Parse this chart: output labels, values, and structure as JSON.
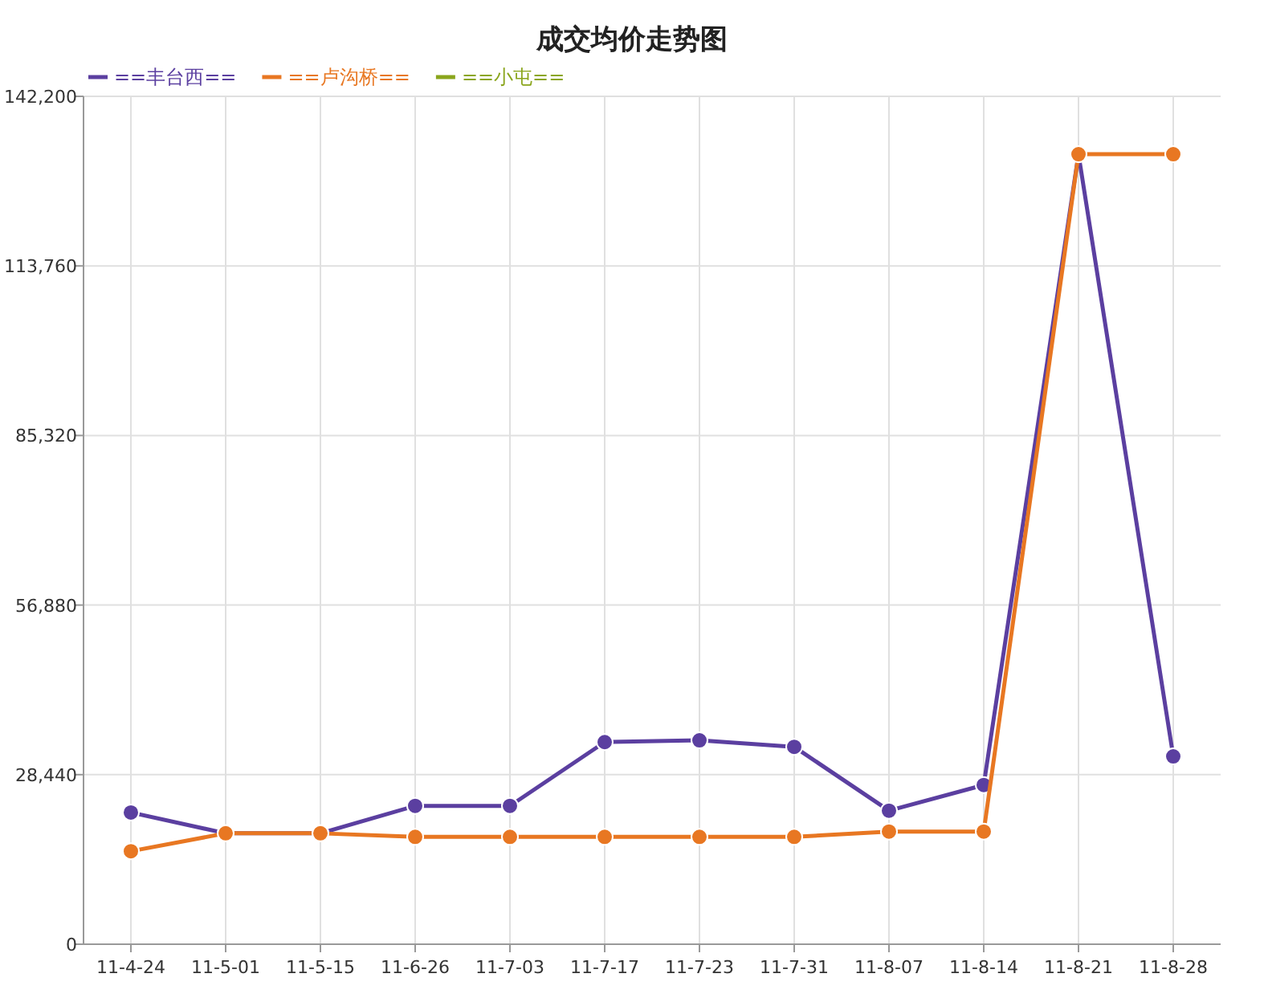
{
  "chart_data": {
    "type": "line",
    "title": "成交均价走势图",
    "categories": [
      "11-4-24",
      "11-5-01",
      "11-5-15",
      "11-6-26",
      "11-7-03",
      "11-7-17",
      "11-7-23",
      "11-7-31",
      "11-8-07",
      "11-8-14",
      "11-8-21",
      "11-8-28"
    ],
    "series": [
      {
        "name": "==丰台西==",
        "color": "#5b3fa0",
        "values": [
          22100,
          18600,
          18600,
          23200,
          23200,
          33900,
          34200,
          33100,
          22400,
          26700,
          132500,
          31500
        ]
      },
      {
        "name": "==卢沟桥==",
        "color": "#e87722",
        "values": [
          15600,
          18600,
          18600,
          18000,
          18000,
          18000,
          18000,
          18000,
          18900,
          18900,
          132500,
          132500
        ]
      },
      {
        "name": "==小屯==",
        "color": "#8aa51c",
        "values": [
          null,
          null,
          null,
          null,
          null,
          null,
          null,
          null,
          null,
          null,
          null,
          null
        ]
      }
    ],
    "ylim": [
      0,
      142200
    ],
    "yticks": [
      0,
      {
        "value": 28440,
        "label": "28,440"
      },
      {
        "value": 56880,
        "label": "56,880"
      },
      {
        "value": 85320,
        "label": "85,320"
      },
      {
        "value": 113760,
        "label": "113,760"
      },
      {
        "value": 142200,
        "label": "142,200"
      }
    ],
    "grid": true,
    "legend": "top left",
    "marker": "circle",
    "line_style": "solid"
  }
}
